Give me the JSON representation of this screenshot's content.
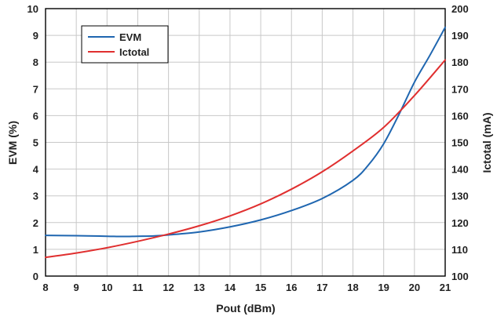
{
  "chart_data": {
    "type": "line",
    "xlabel": "Pout (dBm)",
    "ylabel_left": "EVM (%)",
    "ylabel_right": "Ictotal (mA)",
    "xlim": [
      8,
      21
    ],
    "ylim_left": [
      0,
      10
    ],
    "ylim_right": [
      100,
      200
    ],
    "x_ticks": [
      "8",
      "9",
      "10",
      "11",
      "12",
      "13",
      "14",
      "15",
      "16",
      "17",
      "18",
      "19",
      "20",
      "21"
    ],
    "y_left_ticks": [
      "0",
      "1",
      "2",
      "3",
      "4",
      "5",
      "6",
      "7",
      "8",
      "9",
      "10"
    ],
    "y_right_ticks": [
      "100",
      "110",
      "120",
      "130",
      "140",
      "150",
      "160",
      "170",
      "180",
      "190",
      "200"
    ],
    "grid": true,
    "legend_position": "top-left",
    "series": [
      {
        "name": "EVM",
        "axis": "left",
        "color": "#1f66b0",
        "x": [
          8,
          9,
          10,
          10.5,
          11,
          11.5,
          12,
          13,
          14,
          15,
          16,
          17,
          18,
          18.5,
          19,
          19.5,
          20,
          20.5,
          21
        ],
        "y": [
          1.52,
          1.51,
          1.49,
          1.48,
          1.49,
          1.5,
          1.54,
          1.65,
          1.84,
          2.1,
          2.45,
          2.9,
          3.58,
          4.15,
          4.95,
          6.05,
          7.25,
          8.25,
          9.3
        ]
      },
      {
        "name": "Ictotal",
        "axis": "right",
        "color": "#e02f2f",
        "x": [
          8,
          9,
          10,
          11,
          12,
          13,
          14,
          15,
          16,
          17,
          18,
          19,
          20,
          21
        ],
        "y": [
          107.0,
          108.6,
          110.6,
          113.0,
          115.7,
          118.8,
          122.5,
          127.0,
          132.5,
          139.0,
          146.8,
          155.6,
          167.5,
          180.8
        ]
      }
    ]
  }
}
